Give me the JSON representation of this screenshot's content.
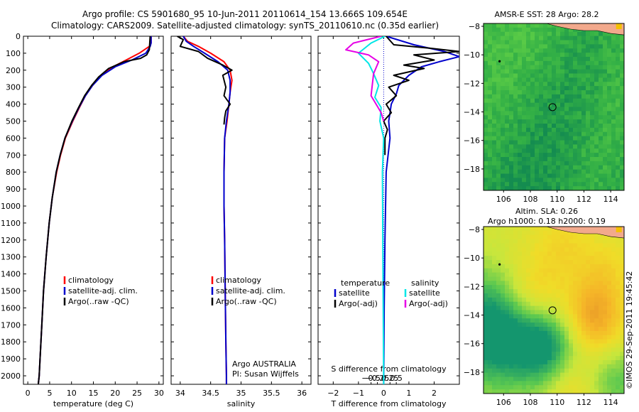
{
  "titles": {
    "line1": "Argo profile: CS 5901680_95 10-Jun-2011 20110614_154 13.666S 109.654E",
    "line2": "Climatology: CARS2009. Satellite-adjusted climatology: synTS_20110610.nc (0.35d earlier)"
  },
  "maps": {
    "sst_title": "AMSR-E SST: 28 Argo: 28.2",
    "sla_title1": "Altim. SLA: 0.26",
    "sla_title2": "Argo h1000: 0.18 h2000: 0.19"
  },
  "stamp": "©IMOS 29-Sep-2011 19:45:42",
  "colors": {
    "climatology": "#ff0000",
    "satellite": "#0000cc",
    "argo": "#000000",
    "salinity_satellite": "#00e6e6",
    "salinity_argo": "#e600e6"
  },
  "chart_data": [
    {
      "type": "line",
      "panel": "temperature",
      "xlabel": "temperature (deg C)",
      "ylabel": "",
      "xlim": [
        -1,
        31
      ],
      "ylim": [
        2050,
        0
      ],
      "xticks": [
        0,
        5,
        10,
        15,
        20,
        25,
        30
      ],
      "yticks": [
        0,
        100,
        200,
        300,
        400,
        500,
        600,
        700,
        800,
        900,
        1000,
        1100,
        1200,
        1300,
        1400,
        1500,
        1600,
        1700,
        1800,
        1900,
        2000
      ],
      "legend_location": "middle-right",
      "series": [
        {
          "name": "climatology",
          "color": "#ff0000",
          "x": [
            28.2,
            28.2,
            27.8,
            25.5,
            22.5,
            19.5,
            16.8,
            14.8,
            13.2,
            11.8,
            10.3,
            8.6,
            7.5,
            6.6,
            5.6,
            4.9,
            4.2,
            3.6,
            3.2,
            2.8,
            2.6,
            2.4
          ],
          "y": [
            0,
            40,
            60,
            100,
            140,
            180,
            230,
            290,
            350,
            420,
            500,
            600,
            700,
            800,
            950,
            1100,
            1300,
            1500,
            1700,
            1900,
            2000,
            2050
          ]
        },
        {
          "name": "satellite-adj. clim.",
          "color": "#0000cc",
          "x": [
            28.2,
            28.2,
            28.0,
            27.0,
            23.8,
            20.0,
            17.0,
            14.8,
            13.2,
            11.7,
            10.2,
            8.5,
            7.4,
            6.5,
            5.6,
            4.9,
            4.2,
            3.6,
            3.2,
            2.8,
            2.6,
            2.4
          ],
          "y": [
            0,
            40,
            60,
            100,
            140,
            180,
            230,
            290,
            350,
            420,
            500,
            600,
            700,
            800,
            950,
            1100,
            1300,
            1500,
            1700,
            1900,
            2000,
            2050
          ]
        },
        {
          "name": "Argo(..raw -QC)",
          "color": "#000000",
          "x": [
            28.0,
            27.8,
            27.2,
            25.8,
            22.0,
            18.5,
            16.2,
            14.6,
            13.0,
            11.6,
            10.1,
            8.5,
            7.4,
            6.5,
            5.6,
            4.9,
            4.2,
            3.6,
            3.2,
            2.8,
            2.6,
            2.4
          ],
          "y": [
            0,
            80,
            110,
            130,
            150,
            190,
            240,
            290,
            350,
            420,
            500,
            600,
            700,
            800,
            950,
            1100,
            1300,
            1500,
            1700,
            1900,
            2000,
            2050
          ]
        }
      ],
      "legend": [
        "climatology",
        "satellite-adj. clim.",
        "Argo(..raw -QC)"
      ]
    },
    {
      "type": "line",
      "panel": "salinity",
      "xlabel": "salinity",
      "ylabel": "",
      "xlim": [
        33.85,
        36.15
      ],
      "ylim": [
        2050,
        0
      ],
      "xticks": [
        34,
        34.5,
        35,
        35.5,
        36
      ],
      "xtick_labels": [
        "34",
        "34.5",
        "35",
        "35.5",
        "36"
      ],
      "legend_location": "middle-right",
      "series": [
        {
          "name": "climatology",
          "color": "#ff0000",
          "x": [
            34.05,
            34.12,
            34.3,
            34.5,
            34.72,
            34.82,
            34.85,
            34.82,
            34.8,
            34.77,
            34.73,
            34.72,
            34.72,
            34.73,
            34.74,
            34.75,
            34.76,
            34.76
          ],
          "y": [
            0,
            30,
            60,
            100,
            150,
            200,
            260,
            330,
            400,
            500,
            600,
            800,
            1000,
            1200,
            1500,
            1800,
            2000,
            2050
          ]
        },
        {
          "name": "satellite-adj. clim.",
          "color": "#0000cc",
          "x": [
            34.05,
            34.1,
            34.22,
            34.4,
            34.62,
            34.78,
            34.82,
            34.82,
            34.8,
            34.76,
            34.73,
            34.72,
            34.72,
            34.73,
            34.74,
            34.75,
            34.76,
            34.76
          ],
          "y": [
            0,
            30,
            60,
            100,
            150,
            200,
            260,
            330,
            400,
            500,
            600,
            800,
            1000,
            1200,
            1500,
            1800,
            2000,
            2050
          ]
        },
        {
          "name": "Argo(..raw -QC)",
          "color": "#000000",
          "x": [
            33.95,
            34.05,
            34.0,
            34.3,
            34.45,
            34.7,
            34.85,
            34.7,
            34.75,
            34.72,
            34.82,
            34.75,
            34.73,
            34.72
          ],
          "y": [
            0,
            20,
            60,
            90,
            130,
            170,
            200,
            230,
            300,
            350,
            400,
            440,
            480,
            520
          ]
        }
      ],
      "legend": [
        "climatology",
        "satellite-adj. clim.",
        "Argo(..raw -QC)"
      ],
      "annotations": [
        "Argo AUSTRALIA",
        "PI: Susan Wijffels"
      ]
    },
    {
      "type": "line",
      "panel": "difference",
      "xlabel": "T difference from climatology",
      "top_axis_label": "S difference from climatology",
      "xlim": [
        -2.6,
        3.0
      ],
      "ylim": [
        2050,
        0
      ],
      "xticks": [
        -2,
        -1,
        0,
        1,
        2
      ],
      "xtick_labels": [
        "−2",
        "−1",
        "0",
        "1",
        "2"
      ],
      "top_ticks": [
        -0.5,
        -0.25,
        0,
        0.25,
        0.5
      ],
      "top_tick_labels": [
        "−0.5",
        "−0.25",
        "0",
        "0.25",
        "0.5"
      ],
      "legend_location": "middle",
      "series": [
        {
          "name": "satellite",
          "group": "temperature",
          "color": "#0000cc",
          "x": [
            0.1,
            1.2,
            2.4,
            3.0,
            2.2,
            1.5,
            1.0,
            0.6,
            0.5,
            0.3,
            0.2,
            0.25,
            0.1,
            0.05,
            0.02,
            0.0
          ],
          "y": [
            0,
            50,
            90,
            120,
            150,
            180,
            230,
            290,
            340,
            400,
            500,
            600,
            800,
            1200,
            1600,
            2050
          ]
        },
        {
          "name": "Argo(-adj)",
          "group": "temperature",
          "color": "#000000",
          "x": [
            0.1,
            0.4,
            1.8,
            3.0,
            1.2,
            2.0,
            0.8,
            1.6,
            0.4,
            1.0,
            0.2,
            0.5,
            0.1,
            0.3,
            0.0,
            0.15,
            0.05,
            0.05
          ],
          "y": [
            0,
            50,
            70,
            90,
            110,
            140,
            170,
            190,
            230,
            260,
            300,
            350,
            400,
            450,
            500,
            550,
            600,
            700
          ]
        },
        {
          "name": "satellite",
          "group": "salinity",
          "color": "#00e6e6",
          "x": [
            0.05,
            -0.5,
            -1.0,
            -0.6,
            -0.4,
            -0.2,
            -0.35,
            -0.1,
            -0.15,
            0.0,
            -0.05,
            0.0
          ],
          "y": [
            0,
            40,
            100,
            160,
            220,
            290,
            360,
            420,
            500,
            600,
            800,
            2050
          ]
        },
        {
          "name": "Argo(-adj)",
          "group": "salinity",
          "color": "#e600e6",
          "x": [
            -0.1,
            -1.2,
            -1.5,
            -0.6,
            -0.2,
            -0.4,
            -0.5,
            -0.3,
            -0.1,
            0.0
          ],
          "y": [
            0,
            40,
            80,
            110,
            150,
            220,
            350,
            400,
            450,
            500
          ]
        }
      ],
      "legend_groups": [
        {
          "title": "temperature",
          "items": [
            "satellite",
            "Argo(-adj)"
          ]
        },
        {
          "title": "salinity",
          "items": [
            "satellite",
            "Argo(-adj)"
          ]
        }
      ]
    },
    {
      "type": "heatmap",
      "panel": "sst_map",
      "title": "AMSR-E SST: 28 Argo: 28.2",
      "xlim": [
        104.5,
        115
      ],
      "ylim": [
        -19.5,
        -7.8
      ],
      "xticks": [
        106,
        108,
        110,
        112,
        114
      ],
      "yticks": [
        -8,
        -10,
        -12,
        -14,
        -16,
        -18
      ],
      "ytick_labels": [
        "−8",
        "−10",
        "−12",
        "−14",
        "−16",
        "−18"
      ],
      "markers": [
        {
          "kind": "float_position",
          "lon": 109.654,
          "lat": -13.666
        },
        {
          "kind": "island",
          "lon": 105.7,
          "lat": -10.45
        }
      ]
    },
    {
      "type": "heatmap",
      "panel": "sla_map",
      "title": "Altim. SLA: 0.26",
      "xlim": [
        104.5,
        115
      ],
      "ylim": [
        -19.5,
        -7.8
      ],
      "xticks": [
        106,
        108,
        110,
        112,
        114
      ],
      "yticks": [
        -8,
        -10,
        -12,
        -14,
        -16,
        -18
      ],
      "ytick_labels": [
        "−8",
        "−10",
        "−12",
        "−14",
        "−16",
        "−18"
      ],
      "markers": [
        {
          "kind": "float_position",
          "lon": 109.654,
          "lat": -13.666
        },
        {
          "kind": "island",
          "lon": 105.7,
          "lat": -10.45
        }
      ]
    }
  ]
}
